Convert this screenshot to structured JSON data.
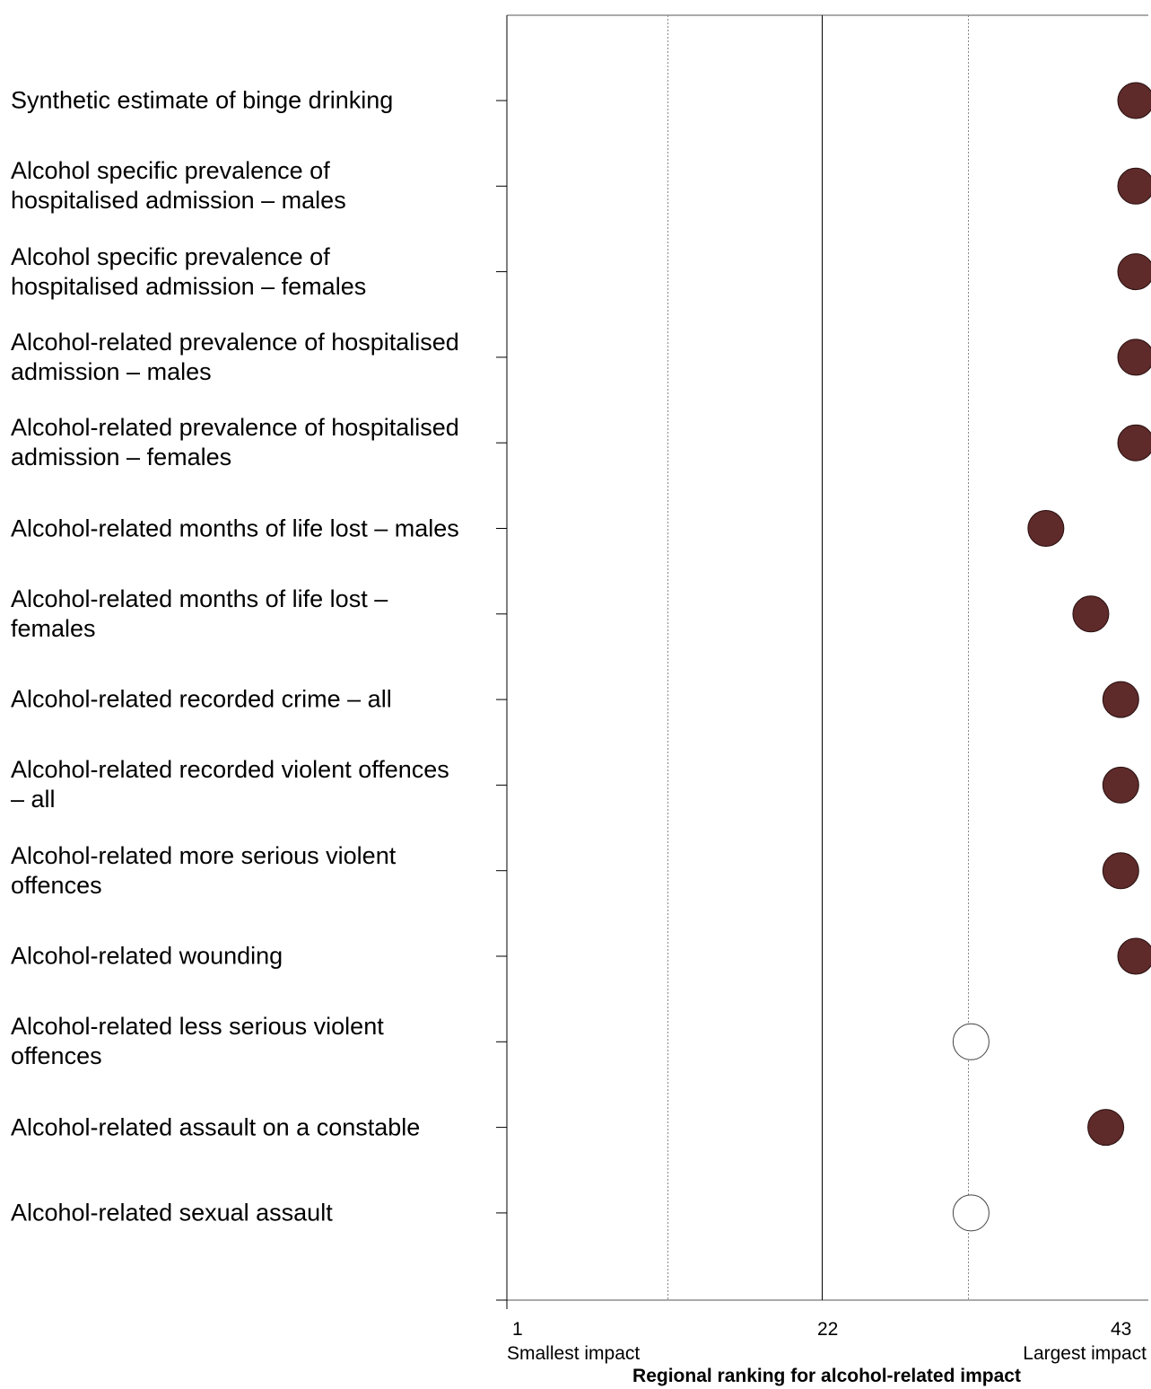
{
  "chart_data": {
    "type": "scatter",
    "title": "",
    "xlabel": "Regional ranking for alcohol-related impact",
    "xlim": [
      1,
      43
    ],
    "xticks": [
      1,
      22,
      43
    ],
    "x_end_labels": {
      "left": "Smallest impact",
      "right": "Largest impact"
    },
    "reference_lines": [
      {
        "x": 11.7,
        "style": "dotted"
      },
      {
        "x": 22,
        "style": "solid"
      },
      {
        "x": 31.8,
        "style": "dotted"
      }
    ],
    "categories": [
      "Synthetic estimate of binge drinking",
      "Alcohol specific prevalence of hospitalised admission – males",
      "Alcohol specific prevalence of hospitalised admission – females",
      "Alcohol-related prevalence of hospitalised admission – males",
      "Alcohol-related prevalence of hospitalised admission – females",
      "Alcohol-related months of life lost – males",
      "Alcohol-related months of life lost – females",
      "Alcohol-related recorded crime – all",
      "Alcohol-related recorded violent offences – all",
      "Alcohol-related more serious violent offences",
      "Alcohol-related wounding",
      "Alcohol-related less serious violent offences",
      "Alcohol-related assault on a constable",
      "Alcohol-related sexual assault"
    ],
    "values": [
      43,
      43,
      43,
      43,
      43,
      37,
      40,
      42,
      42,
      42,
      43,
      32,
      41,
      32
    ],
    "significant": [
      true,
      true,
      true,
      true,
      true,
      true,
      true,
      true,
      true,
      true,
      true,
      false,
      true,
      false
    ],
    "colors": {
      "significant": "#5e2a2a",
      "not_significant": "#ffffff"
    }
  }
}
